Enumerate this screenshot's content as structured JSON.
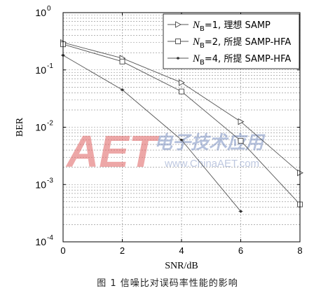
{
  "chart_data": {
    "type": "line",
    "xlabel": "SNR/dB",
    "ylabel": "BER",
    "yscale": "log",
    "xlim": [
      0,
      8
    ],
    "ylim": [
      0.0001,
      1
    ],
    "grid": true,
    "legend_placement": "top-right",
    "xticks": [
      0,
      2,
      4,
      6,
      8
    ],
    "xtick_labels": [
      "0",
      "2",
      "4",
      "6",
      "8"
    ],
    "yticks": [
      1,
      0.1,
      0.01,
      0.001,
      0.0001
    ],
    "ytick_labels": [
      {
        "base": "10",
        "exp": "0"
      },
      {
        "base": "10",
        "exp": "-1"
      },
      {
        "base": "10",
        "exp": "-2"
      },
      {
        "base": "10",
        "exp": "-3"
      },
      {
        "base": "10",
        "exp": "-4"
      }
    ],
    "series": [
      {
        "legend": {
          "sym": "N",
          "sub": "B",
          "rest": "=1, 理想 SAMP"
        },
        "marker": "triangle-right",
        "x": [
          0,
          2,
          4,
          6,
          8
        ],
        "y": [
          0.3,
          0.16,
          0.06,
          0.0125,
          0.0016
        ]
      },
      {
        "legend": {
          "sym": "N",
          "sub": "B",
          "rest": "=2, 所提 SAMP-HFA"
        },
        "marker": "square",
        "x": [
          0,
          2,
          4,
          6,
          8
        ],
        "y": [
          0.28,
          0.14,
          0.042,
          0.0058,
          0.00045
        ]
      },
      {
        "legend": {
          "sym": "N",
          "sub": "B",
          "rest": "=4, 所提 SAMP-HFA"
        },
        "marker": "dot",
        "x": [
          0,
          2,
          4,
          6
        ],
        "y": [
          0.18,
          0.045,
          0.006,
          0.00034
        ]
      }
    ]
  },
  "watermark": {
    "logo": "AET",
    "cn": "电子技术应用",
    "url": "www.ChinaAET.com"
  },
  "caption": "图 1  信噪比对误码率性能的影响"
}
